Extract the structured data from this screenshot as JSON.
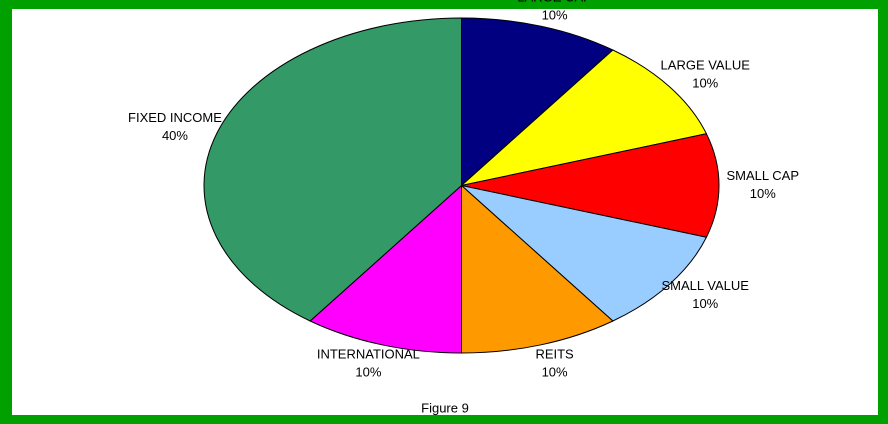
{
  "chart_data": {
    "type": "pie",
    "caption": "Figure 9",
    "categories": [
      "LARGE CAP",
      "LARGE VALUE",
      "SMALL CAP",
      "SMALL VALUE",
      "REITS",
      "INTERNATIONAL",
      "FIXED INCOME"
    ],
    "values": [
      10,
      10,
      10,
      10,
      10,
      10,
      40
    ],
    "value_labels": [
      "10%",
      "10%",
      "10%",
      "10%",
      "10%",
      "10%",
      "40%"
    ],
    "colors": [
      "#000080",
      "#ffff00",
      "#ff0000",
      "#99ccff",
      "#ff9900",
      "#ff00ff",
      "#339966"
    ]
  }
}
